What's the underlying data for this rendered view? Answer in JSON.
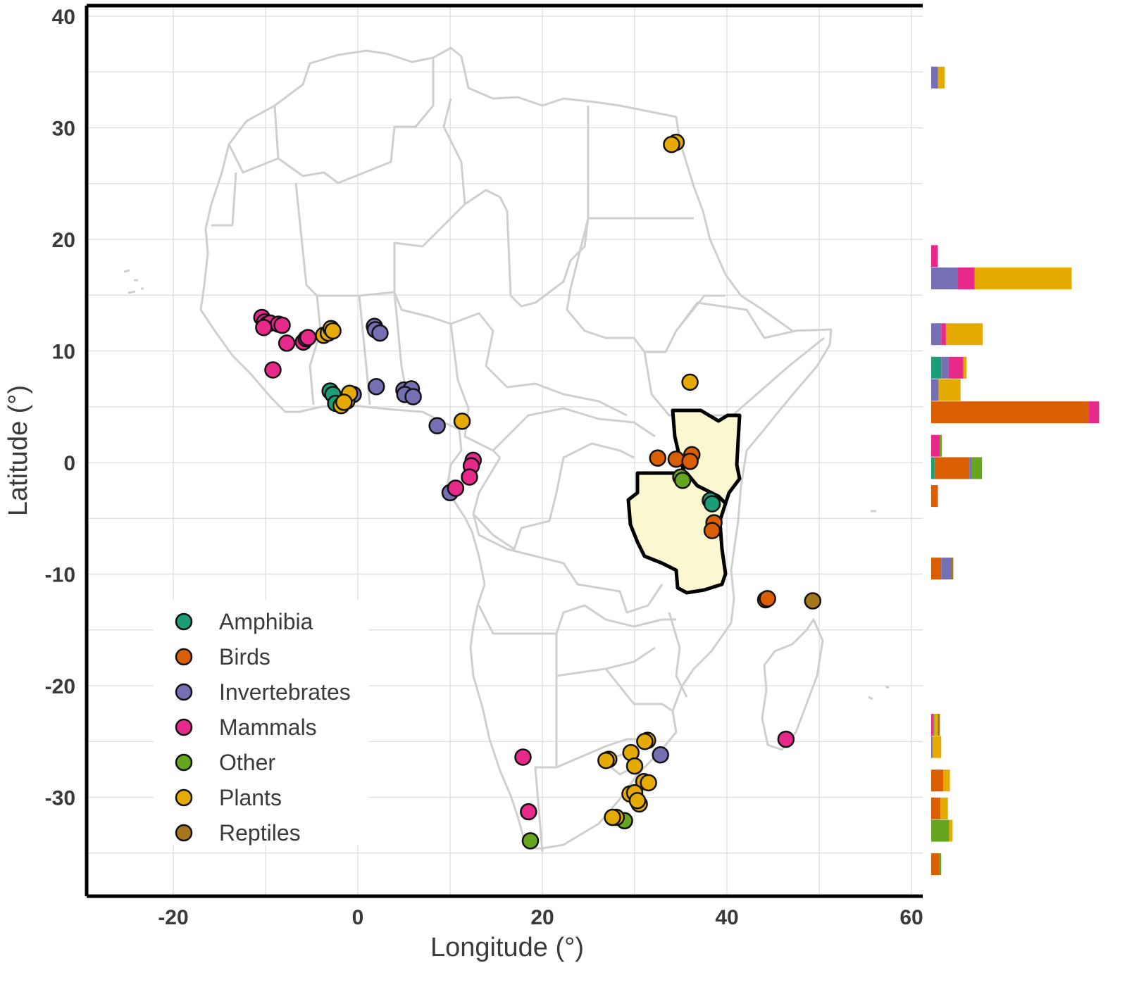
{
  "axes": {
    "xlabel": "Longitude (°)",
    "ylabel": "Latitude (°)",
    "x_ticks": [
      "-20",
      "0",
      "20",
      "40",
      "60"
    ],
    "y_ticks": [
      "40",
      "30",
      "20",
      "10",
      "0",
      "-10",
      "-20",
      "-30"
    ]
  },
  "legend": {
    "placement": "bottom-left",
    "items": [
      {
        "label": "Amphibia",
        "color": "#1b9e77"
      },
      {
        "label": "Birds",
        "color": "#d95f02"
      },
      {
        "label": "Invertebrates",
        "color": "#7570b3"
      },
      {
        "label": "Mammals",
        "color": "#e7298a"
      },
      {
        "label": "Other",
        "color": "#66a61e"
      },
      {
        "label": "Plants",
        "color": "#e6ab02"
      },
      {
        "label": "Reptiles",
        "color": "#a6761d"
      }
    ]
  },
  "chart_data": {
    "type": "scatter",
    "subtype": "map with latitude histogram",
    "xlim": [
      -29,
      61
    ],
    "ylim": [
      -39,
      41
    ],
    "highlighted_regions": [
      "Kenya",
      "Tanzania"
    ],
    "series": [
      {
        "name": "Amphibia",
        "color": "#1b9e77",
        "points": [
          [
            -3,
            6.4
          ],
          [
            -2.7,
            6.1
          ],
          [
            -2.4,
            5.3
          ],
          [
            38.2,
            -3.4
          ],
          [
            38.4,
            -3.7
          ]
        ]
      },
      {
        "name": "Birds",
        "color": "#d95f02",
        "points": [
          [
            32.5,
            0.4
          ],
          [
            34.5,
            0.3
          ],
          [
            36.2,
            0.7
          ],
          [
            36.0,
            0.1
          ],
          [
            38.6,
            -5.4
          ],
          [
            38.4,
            -6.1
          ],
          [
            44.2,
            -12.3
          ],
          [
            44.4,
            -12.2
          ]
        ]
      },
      {
        "name": "Invertebrates",
        "color": "#7570b3",
        "points": [
          [
            1.8,
            12.2
          ],
          [
            1.9,
            11.9
          ],
          [
            2.4,
            11.6
          ],
          [
            -0.5,
            6.1
          ],
          [
            2.0,
            6.8
          ],
          [
            5.0,
            6.5
          ],
          [
            5.8,
            6.6
          ],
          [
            5.1,
            6.1
          ],
          [
            6.0,
            5.9
          ],
          [
            8.6,
            3.3
          ],
          [
            10.0,
            -2.7
          ],
          [
            32.8,
            -26.2
          ]
        ]
      },
      {
        "name": "Mammals",
        "color": "#e7298a",
        "points": [
          [
            -10.4,
            13.0
          ],
          [
            -10.1,
            12.6
          ],
          [
            -9.8,
            12.4
          ],
          [
            -9.5,
            12.5
          ],
          [
            -8.6,
            12.4
          ],
          [
            -8.2,
            12.3
          ],
          [
            -10.2,
            12.1
          ],
          [
            -7.7,
            10.7
          ],
          [
            -5.9,
            10.8
          ],
          [
            -5.6,
            11.1
          ],
          [
            -5.4,
            11.2
          ],
          [
            -9.2,
            8.3
          ],
          [
            12.5,
            0.2
          ],
          [
            12.3,
            -0.3
          ],
          [
            12.1,
            -1.3
          ],
          [
            10.6,
            -2.3
          ],
          [
            17.9,
            -26.4
          ],
          [
            18.5,
            -31.3
          ],
          [
            46.4,
            -24.8
          ]
        ]
      },
      {
        "name": "Other",
        "color": "#66a61e",
        "points": [
          [
            35.0,
            -1.3
          ],
          [
            35.2,
            -1.6
          ],
          [
            18.7,
            -33.9
          ],
          [
            28.9,
            -32.1
          ]
        ]
      },
      {
        "name": "Plants",
        "color": "#e6ab02",
        "points": [
          [
            -3.7,
            11.4
          ],
          [
            -3.2,
            11.6
          ],
          [
            -2.9,
            12.0
          ],
          [
            -2.7,
            11.8
          ],
          [
            34.5,
            28.7
          ],
          [
            34.0,
            28.5
          ],
          [
            36.0,
            7.2
          ],
          [
            11.3,
            3.7
          ],
          [
            -1.2,
            5.5
          ],
          [
            -1.8,
            5.1
          ],
          [
            -0.9,
            6.2
          ],
          [
            -1.5,
            5.4
          ],
          [
            31.4,
            -24.9
          ],
          [
            31.1,
            -25.0
          ],
          [
            27.2,
            -26.6
          ],
          [
            26.9,
            -26.7
          ],
          [
            29.6,
            -26.0
          ],
          [
            30.0,
            -27.2
          ],
          [
            31.0,
            -28.6
          ],
          [
            31.5,
            -28.7
          ],
          [
            29.5,
            -29.7
          ],
          [
            30.0,
            -29.6
          ],
          [
            30.5,
            -30.6
          ],
          [
            30.3,
            -30.3
          ],
          [
            28.0,
            -31.8
          ],
          [
            27.6,
            -31.8
          ]
        ]
      },
      {
        "name": "Reptiles",
        "color": "#a6761d",
        "points": [
          [
            49.3,
            -12.4
          ]
        ]
      }
    ],
    "latitude_histogram": {
      "bin_width_deg": 2,
      "bins": [
        {
          "lat": 34.5,
          "counts": {
            "Invertebrates": 1,
            "Plants": 1
          }
        },
        {
          "lat": 18.5,
          "counts": {
            "Mammals": 1
          }
        },
        {
          "lat": 16.5,
          "counts": {
            "Invertebrates": 4,
            "Mammals": 2.5,
            "Plants": 14.5
          }
        },
        {
          "lat": 11.5,
          "counts": {
            "Invertebrates": 1.5,
            "Mammals": 0.7,
            "Plants": 5.5
          }
        },
        {
          "lat": 8.5,
          "counts": {
            "Amphibia": 1.5,
            "Invertebrates": 1.1,
            "Mammals": 2.2,
            "Plants": 0.5
          }
        },
        {
          "lat": 6.5,
          "counts": {
            "Invertebrates": 1.1,
            "Plants": 3.3
          }
        },
        {
          "lat": 4.5,
          "counts": {
            "Birds": 23.5,
            "Mammals": 1.6
          }
        },
        {
          "lat": 1.5,
          "counts": {
            "Mammals": 1.3,
            "Other": 0.3
          }
        },
        {
          "lat": -0.5,
          "counts": {
            "Amphibia": 0.5,
            "Birds": 5.2,
            "Invertebrates": 0.3,
            "Other": 1.6
          }
        },
        {
          "lat": -3.0,
          "counts": {
            "Birds": 1
          }
        },
        {
          "lat": -9.5,
          "counts": {
            "Birds": 1.5,
            "Invertebrates": 1.5,
            "Reptiles": 0.3
          }
        },
        {
          "lat": -23.5,
          "counts": {
            "Mammals": 0.3,
            "Other": 0.2,
            "Plants": 0.5,
            "Reptiles": 0.3
          }
        },
        {
          "lat": -25.5,
          "counts": {
            "Invertebrates": 0.2,
            "Plants": 1.3
          }
        },
        {
          "lat": -28.5,
          "counts": {
            "Birds": 1.8,
            "Plants": 1
          }
        },
        {
          "lat": -31.0,
          "counts": {
            "Birds": 1.4,
            "Plants": 1.1
          }
        },
        {
          "lat": -33.0,
          "counts": {
            "Other": 2.7,
            "Plants": 0.5
          }
        },
        {
          "lat": -36.0,
          "counts": {
            "Birds": 1.2,
            "Other": 0.3
          }
        }
      ]
    }
  }
}
